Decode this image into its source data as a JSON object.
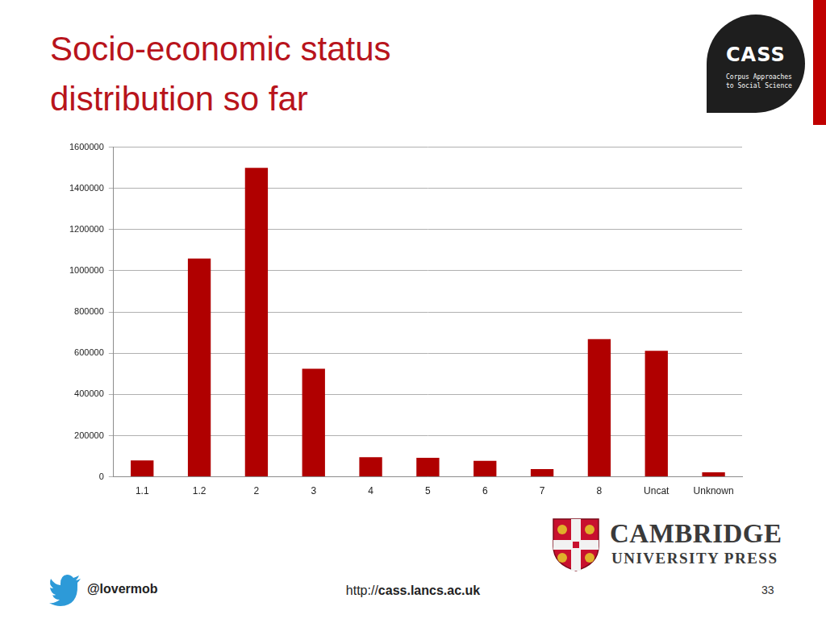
{
  "chart_data": {
    "type": "bar",
    "title": "Socio-economic status distribution so far",
    "categories": [
      "1.1",
      "1.2",
      "2",
      "3",
      "4",
      "5",
      "6",
      "7",
      "8",
      "Uncat",
      "Unknown"
    ],
    "values": [
      80000,
      1060000,
      1500000,
      525000,
      95000,
      92000,
      78000,
      38000,
      668000,
      612000,
      22000
    ],
    "color": "#b00000",
    "ylim": [
      0,
      1600000
    ],
    "yticks": [
      0,
      200000,
      400000,
      600000,
      800000,
      1000000,
      1200000,
      1400000,
      1600000
    ],
    "grid": true
  },
  "logo": {
    "name": "CASS",
    "subtitle": [
      "Corpus Approaches",
      "to Social Science"
    ]
  },
  "publisher": {
    "name": "CAMBRIDGE",
    "subtitle": "UNIVERSITY PRESS"
  },
  "footer": {
    "handle": "@lovermob",
    "url": [
      "http://",
      "cass.lancs.ac.uk"
    ],
    "page": "33"
  }
}
